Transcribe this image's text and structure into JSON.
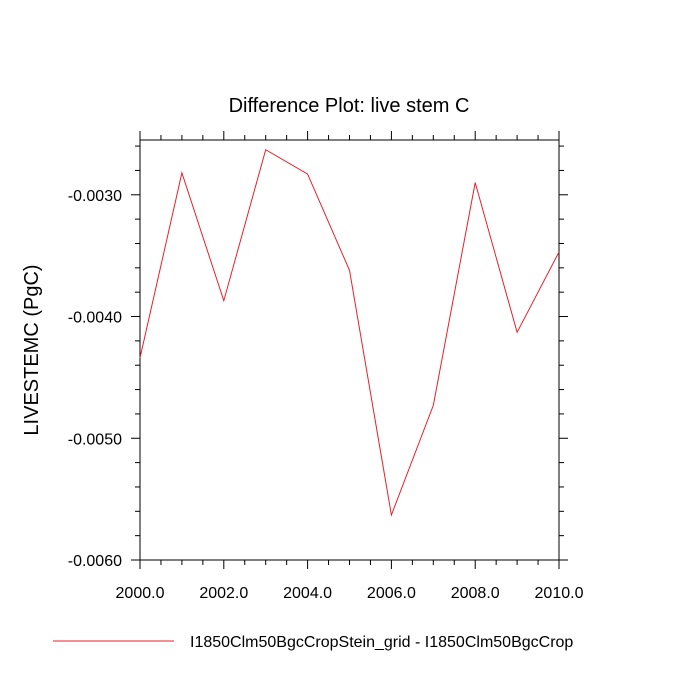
{
  "chart_data": {
    "type": "line",
    "title": "Difference Plot: live stem C",
    "xlabel": "",
    "ylabel": "LIVESTEMC  (PgC)",
    "xlim": [
      2000,
      2010
    ],
    "ylim": [
      -0.006,
      -0.00255
    ],
    "x_ticks": [
      2000,
      2002,
      2004,
      2006,
      2008,
      2010
    ],
    "x_tick_labels": [
      "2000.0",
      "2002.0",
      "2004.0",
      "2006.0",
      "2008.0",
      "2010.0"
    ],
    "y_ticks": [
      -0.003,
      -0.004,
      -0.005,
      -0.006
    ],
    "y_tick_labels": [
      "-0.0030",
      "-0.0040",
      "-0.0050",
      "-0.0060"
    ],
    "grid": false,
    "legend_position": "bottom",
    "series": [
      {
        "name": "I1850Clm50BgcCropStein_grid - I1850Clm50BgcCrop",
        "color": "#e8202a",
        "x": [
          2000,
          2001,
          2002,
          2003,
          2004,
          2005,
          2006,
          2007,
          2008,
          2009,
          2010
        ],
        "y": [
          -0.00434,
          -0.00282,
          -0.00387,
          -0.00263,
          -0.00283,
          -0.00362,
          -0.00563,
          -0.00473,
          -0.0029,
          -0.00413,
          -0.00347
        ]
      }
    ]
  }
}
